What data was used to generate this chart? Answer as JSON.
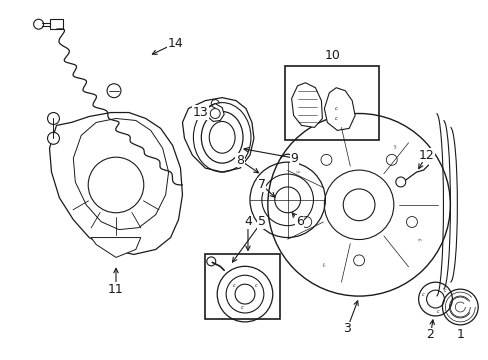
{
  "bg_color": "#ffffff",
  "line_color": "#1a1a1a",
  "label_fontsize": 9,
  "figsize": [
    4.89,
    3.6
  ],
  "dpi": 100,
  "xlim": [
    0,
    489
  ],
  "ylim": [
    0,
    360
  ]
}
